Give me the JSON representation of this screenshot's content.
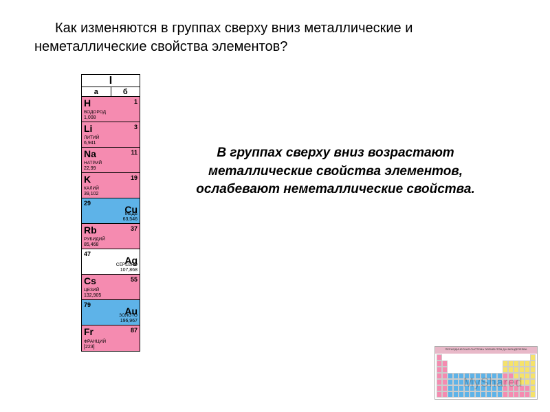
{
  "question": "Как изменяются в группах сверху вниз металлические и неметаллические свойства элементов?",
  "answer": {
    "line1": "В группах сверху вниз возрастают",
    "line2": "металлические свойства элементов,",
    "line3": "ослабевают неметаллические свойства."
  },
  "column": {
    "group_roman": "I",
    "sub_a": "а",
    "sub_b": "б",
    "colors": {
      "pink": "#f58bb0",
      "blue": "#5eb3e8",
      "white": "#ffffff"
    },
    "elements": [
      {
        "sym": "H",
        "num": "1",
        "name": "ВОДОРОД",
        "mass": "1,008",
        "group": "main",
        "bg": "pink"
      },
      {
        "sym": "Li",
        "num": "3",
        "name": "ЛИТИЙ",
        "mass": "6,941",
        "group": "main",
        "bg": "pink"
      },
      {
        "sym": "Na",
        "num": "11",
        "name": "НАТРИЙ",
        "mass": "22,99",
        "group": "main",
        "bg": "pink"
      },
      {
        "sym": "K",
        "num": "19",
        "name": "КАЛИЙ",
        "mass": "39,102",
        "group": "main",
        "bg": "pink"
      },
      {
        "sym": "Cu",
        "num": "29",
        "name": "МЕДЬ",
        "mass": "63,546",
        "group": "sub",
        "bg": "blue"
      },
      {
        "sym": "Rb",
        "num": "37",
        "name": "РУБИДИЙ",
        "mass": "85,468",
        "group": "main",
        "bg": "pink"
      },
      {
        "sym": "Ag",
        "num": "47",
        "name": "СЕРЕБРО",
        "mass": "107,868",
        "group": "sub",
        "bg": "white"
      },
      {
        "sym": "Cs",
        "num": "55",
        "name": "ЦЕЗИЙ",
        "mass": "132,905",
        "group": "main",
        "bg": "pink"
      },
      {
        "sym": "Au",
        "num": "79",
        "name": "ЗОЛОТО",
        "mass": "196,967",
        "group": "sub",
        "bg": "blue"
      },
      {
        "sym": "Fr",
        "num": "87",
        "name": "ФРАНЦИЙ",
        "mass": "[223]",
        "group": "main",
        "bg": "pink"
      }
    ]
  },
  "thumb": {
    "title": "ПЕРИОДИЧЕСКАЯ СИСТЕМА ЭЛЕМЕНТОВ Д.И.МЕНДЕЛЕЕВА",
    "colors": {
      "pink": "#f58bb0",
      "blue": "#5eb3e8",
      "yellow": "#f5e26b",
      "white": "#ffffff"
    },
    "pattern": [
      "p................y",
      "pp..........yyyyyy",
      "pp..........yyyyyy",
      "ppbbbbbbbbbbppyyyy",
      "ppbbbbbbbbbbpppyyy",
      "ppbbbbbbbbbbpppppy",
      "ppbbbbbbbbbbpppppy"
    ]
  },
  "watermark": "MyShared"
}
